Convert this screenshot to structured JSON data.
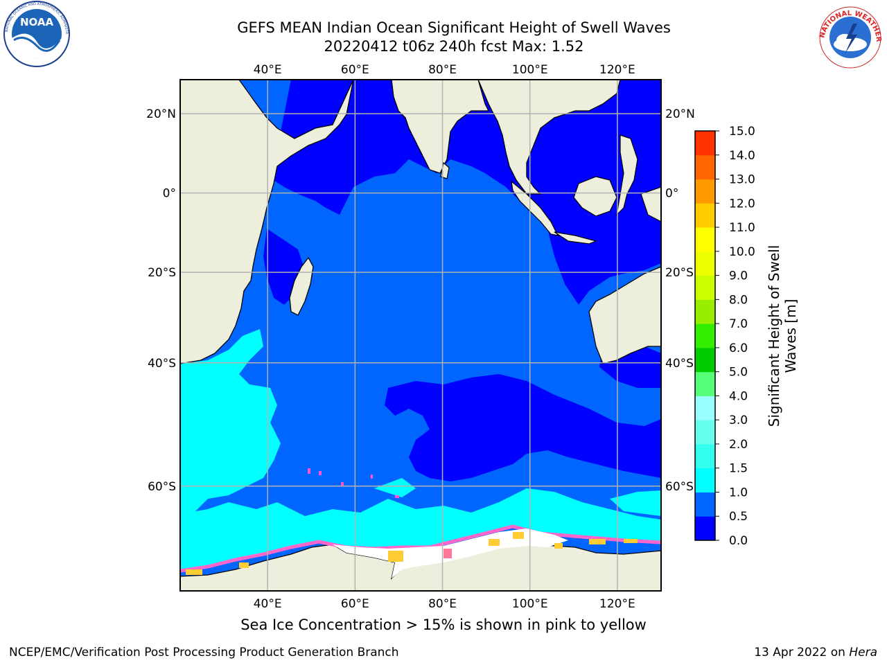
{
  "header": {
    "title_line1": "GEFS MEAN Indian Ocean Significant Height of Swell Waves",
    "title_line2": "20220412 t06z 240h fcst   Max: 1.52"
  },
  "logos": {
    "left": {
      "name": "noaa-logo",
      "text": "NOAA",
      "ring_text": "NATIONAL OCEANIC AND ATMOSPHERIC ADMINISTRATION · U.S. DEPARTMENT OF COMMERCE"
    },
    "right": {
      "name": "national-weather-service-logo",
      "ring_text": "NATIONAL WEATHER SERVICE"
    }
  },
  "map": {
    "region": "Indian Ocean",
    "lon_ticks": [
      "40°E",
      "60°E",
      "80°E",
      "100°E",
      "120°E"
    ],
    "lat_ticks": [
      "20°N",
      "0°",
      "20°S",
      "40°S",
      "60°S"
    ],
    "lon_range": [
      20,
      130
    ],
    "lat_range": [
      -71,
      28
    ],
    "gridlines": true,
    "colors": {
      "land": "#eeeedd",
      "coast": "#000000",
      "ice": "#ffffff",
      "ice_edge": "#ff66cc",
      "grid": "#b3b3b3"
    }
  },
  "colorbar": {
    "label_line1": "Significant Height of Swell",
    "label_line2": "Waves [m]",
    "levels": [
      "0.0",
      "0.5",
      "1.0",
      "1.5",
      "2.0",
      "3.0",
      "4.0",
      "5.0",
      "6.0",
      "7.0",
      "8.0",
      "9.0",
      "10.0",
      "11.0",
      "12.0",
      "13.0",
      "14.0",
      "15.0"
    ],
    "colors": [
      "#0000ff",
      "#0066ff",
      "#00ffff",
      "#33ffee",
      "#66ffee",
      "#99ffff",
      "#55ff77",
      "#00cc00",
      "#33ee00",
      "#99ee00",
      "#ccff00",
      "#eeff00",
      "#ffff00",
      "#ffcc00",
      "#ff9900",
      "#ff6600",
      "#ff3300",
      "#ff0000"
    ]
  },
  "bottom_note": "Sea Ice Concentration > 15% is shown in pink to yellow",
  "footer": {
    "left": "NCEP/EMC/Verification Post Processing Product Generation Branch",
    "right_prefix": "13 Apr 2022 on ",
    "right_machine": "Hera"
  }
}
